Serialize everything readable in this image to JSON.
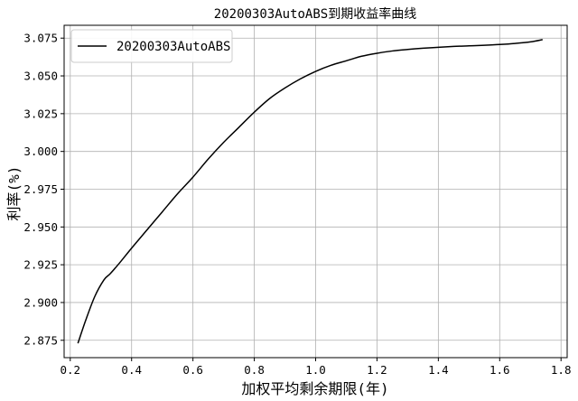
{
  "chart_data": {
    "type": "line",
    "title": "20200303AutoABS到期收益率曲线",
    "xlabel": "加权平均剩余期限(年)",
    "ylabel": "利率(%)",
    "xlim": [
      0.18,
      1.82
    ],
    "ylim": [
      2.8635,
      3.0835
    ],
    "xticks": [
      0.2,
      0.4,
      0.6,
      0.8,
      1.0,
      1.2,
      1.4,
      1.6,
      1.8
    ],
    "xtick_labels": [
      "0.2",
      "0.4",
      "0.6",
      "0.8",
      "1.0",
      "1.2",
      "1.4",
      "1.6",
      "1.8"
    ],
    "yticks": [
      2.875,
      2.9,
      2.925,
      2.95,
      2.975,
      3.0,
      3.025,
      3.05,
      3.075
    ],
    "ytick_labels": [
      "2.875",
      "2.900",
      "2.925",
      "2.950",
      "2.975",
      "3.000",
      "3.025",
      "3.050",
      "3.075"
    ],
    "grid": true,
    "legend_position": "top-left",
    "series": [
      {
        "name": "20200303AutoABS",
        "color": "#000000",
        "x": [
          0.225,
          0.25,
          0.28,
          0.31,
          0.33,
          0.36,
          0.4,
          0.45,
          0.5,
          0.55,
          0.6,
          0.65,
          0.7,
          0.75,
          0.8,
          0.85,
          0.9,
          0.95,
          1.0,
          1.05,
          1.1,
          1.15,
          1.2,
          1.25,
          1.3,
          1.35,
          1.4,
          1.45,
          1.5,
          1.55,
          1.6,
          1.65,
          1.7,
          1.74
        ],
        "y": [
          2.873,
          2.888,
          2.904,
          2.915,
          2.919,
          2.926,
          2.936,
          2.948,
          2.96,
          2.972,
          2.983,
          2.995,
          3.006,
          3.016,
          3.026,
          3.035,
          3.042,
          3.048,
          3.053,
          3.057,
          3.06,
          3.063,
          3.065,
          3.0665,
          3.0675,
          3.0683,
          3.0689,
          3.0695,
          3.0699,
          3.0703,
          3.0708,
          3.0715,
          3.0725,
          3.074
        ]
      }
    ]
  }
}
